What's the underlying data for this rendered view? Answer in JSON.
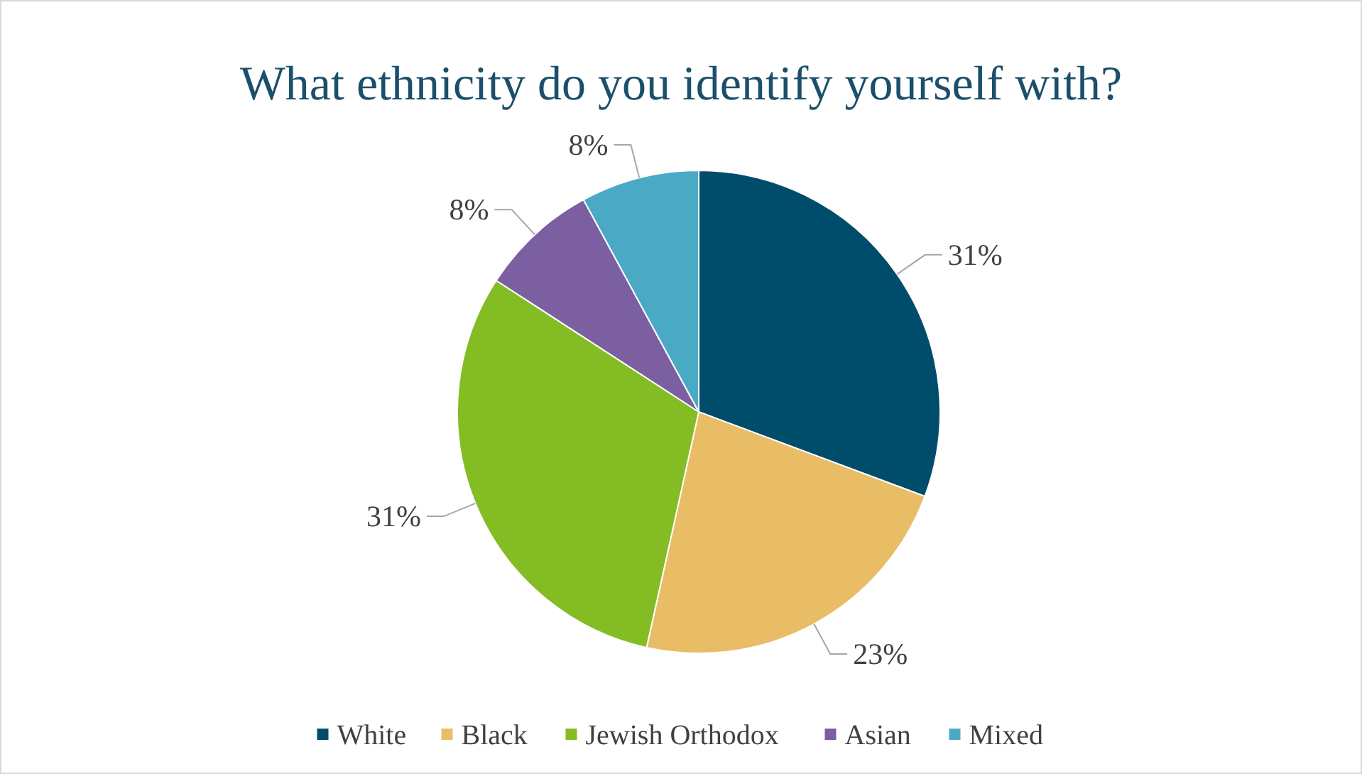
{
  "chart_data": {
    "type": "pie",
    "title": "What ethnicity do you identify yourself with?",
    "categories": [
      "White",
      "Black",
      "Jewish Orthodox",
      "Asian",
      "Mixed"
    ],
    "values": [
      31,
      23,
      31,
      8,
      8
    ],
    "value_labels": [
      "31%",
      "23%",
      "31%",
      "8%",
      "8%"
    ],
    "colors": [
      "#004d6b",
      "#e8bd66",
      "#84bc23",
      "#7b5fa0",
      "#4aaac6"
    ],
    "legend": "bottom"
  }
}
